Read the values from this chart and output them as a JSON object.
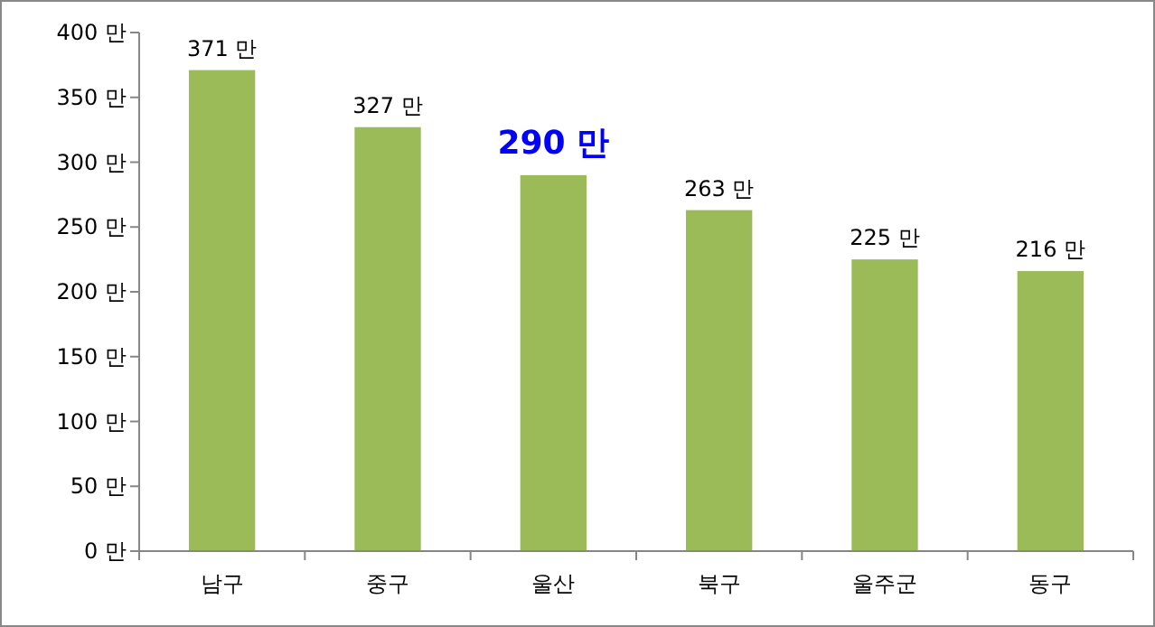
{
  "chart_data": {
    "type": "bar",
    "categories": [
      "남구",
      "중구",
      "울산",
      "북구",
      "울주군",
      "동구"
    ],
    "values": [
      371,
      327,
      290,
      263,
      225,
      216
    ],
    "color": "#9bbb59",
    "value_labels": [
      "371 만",
      "327 만",
      null,
      "263 만",
      "225 만",
      "216 만"
    ],
    "annotations": [
      {
        "text": "290 만",
        "x": "울산",
        "y": 290
      }
    ],
    "ylim": [
      0,
      400
    ],
    "yticks": [
      {
        "value": 0,
        "label": "0 만"
      },
      {
        "value": 50,
        "label": "50 만"
      },
      {
        "value": 100,
        "label": "100 만"
      },
      {
        "value": 150,
        "label": "150 만"
      },
      {
        "value": 200,
        "label": "200 만"
      },
      {
        "value": 250,
        "label": "250 만"
      },
      {
        "value": 300,
        "label": "300 만"
      },
      {
        "value": 350,
        "label": "350 만"
      },
      {
        "value": 400,
        "label": "400 만"
      }
    ],
    "grid": false
  }
}
